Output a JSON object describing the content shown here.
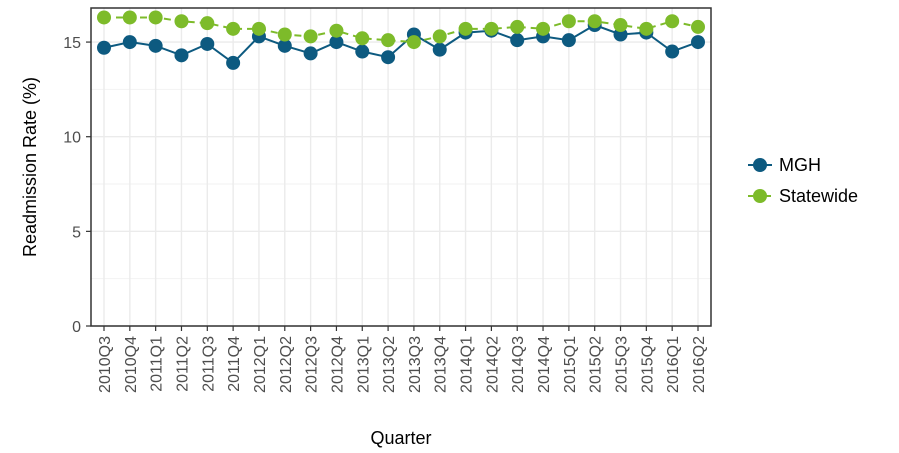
{
  "chart_data": {
    "type": "line",
    "xlabel": "Quarter",
    "ylabel": "Readmission Rate (%)",
    "ylim": [
      0,
      16.8
    ],
    "yticks": [
      0,
      5,
      10,
      15
    ],
    "grid": true,
    "legend_position": "right",
    "categories": [
      "2010Q3",
      "2010Q4",
      "2011Q1",
      "2011Q2",
      "2011Q3",
      "2011Q4",
      "2012Q1",
      "2012Q2",
      "2012Q3",
      "2012Q4",
      "2013Q1",
      "2013Q2",
      "2013Q3",
      "2013Q4",
      "2014Q1",
      "2014Q2",
      "2014Q3",
      "2014Q4",
      "2015Q1",
      "2015Q2",
      "2015Q3",
      "2015Q4",
      "2016Q1",
      "2016Q2"
    ],
    "series": [
      {
        "name": "MGH",
        "color": "#0d5a80",
        "line_style": "solid",
        "values": [
          14.7,
          15.0,
          14.8,
          14.3,
          14.9,
          13.9,
          15.3,
          14.8,
          14.4,
          15.0,
          14.5,
          14.2,
          15.4,
          14.6,
          15.5,
          15.6,
          15.1,
          15.3,
          15.1,
          15.9,
          15.4,
          15.5,
          14.5,
          15.0
        ]
      },
      {
        "name": "Statewide",
        "color": "#7dbb2a",
        "line_style": "dashed",
        "values": [
          16.3,
          16.3,
          16.3,
          16.1,
          16.0,
          15.7,
          15.7,
          15.4,
          15.3,
          15.6,
          15.2,
          15.1,
          15.0,
          15.3,
          15.7,
          15.7,
          15.8,
          15.7,
          16.1,
          16.1,
          15.9,
          15.7,
          16.1,
          15.8
        ]
      }
    ]
  }
}
